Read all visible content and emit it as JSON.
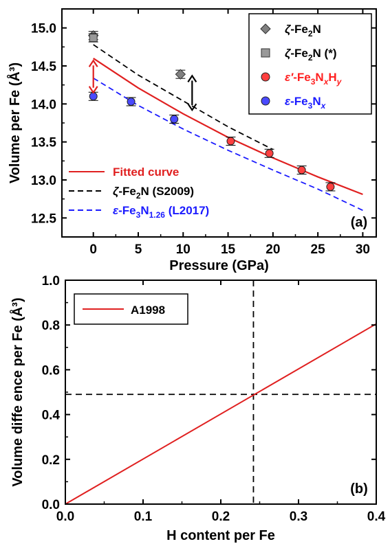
{
  "chart_data": [
    {
      "type": "scatter",
      "panel_label": "(a)",
      "xlabel": "Pressure (GPa)",
      "ylabel": "Volume per Fe (Å³)",
      "xlim": [
        -3.5,
        31.5
      ],
      "ylim": [
        12.25,
        15.25
      ],
      "xticks": [
        0,
        5,
        10,
        15,
        20,
        25,
        30
      ],
      "yticks": [
        12.5,
        13.0,
        13.5,
        14.0,
        14.5,
        15.0
      ],
      "xtick_labels": [
        "0",
        "5",
        "10",
        "15",
        "20",
        "25",
        "30"
      ],
      "ytick_labels": [
        "12.5",
        "13.0",
        "13.5",
        "14.0",
        "14.5",
        "15.0"
      ],
      "series": [
        {
          "name": "ζ-Fe₂N",
          "label_parts": [
            "ζ",
            "-Fe",
            "2",
            "N",
            "",
            "",
            ""
          ],
          "marker": "diamond",
          "color": "#808080",
          "x": [
            0,
            9.7
          ],
          "y": [
            14.9,
            14.39
          ]
        },
        {
          "name": "ζ-Fe₂N (*)",
          "label_parts": [
            "ζ",
            "-Fe",
            "2",
            "N (*)",
            "",
            "",
            ""
          ],
          "marker": "square",
          "color": "#999999",
          "x": [
            0
          ],
          "y": [
            14.87
          ]
        },
        {
          "name": "ε′-Fe₃NₓHᵧ",
          "label_parts": [
            "ε′",
            "-Fe",
            "3",
            "N",
            "x",
            "H",
            "y"
          ],
          "marker": "circle",
          "color": "#ff4040",
          "x": [
            15.3,
            19.6,
            23.2,
            26.4
          ],
          "y": [
            13.51,
            13.35,
            13.13,
            12.91
          ]
        },
        {
          "name": "ε-Fe₃Nₓ",
          "label_parts": [
            "ε",
            "-Fe",
            "3",
            "N",
            "x",
            "",
            ""
          ],
          "marker": "circle",
          "color": "#4a4aff",
          "x": [
            0,
            4.2,
            9.0
          ],
          "y": [
            14.1,
            14.03,
            13.8
          ]
        }
      ],
      "lines": [
        {
          "name": "Fitted curve",
          "label_parts": [
            "",
            "Fitted curve",
            "",
            "",
            ""
          ],
          "style": "solid",
          "color": "#e02020",
          "x": [
            0,
            5,
            10,
            15,
            20,
            25,
            30
          ],
          "y": [
            14.6,
            14.21,
            13.87,
            13.56,
            13.29,
            13.04,
            12.81
          ]
        },
        {
          "name": "ζ-Fe₂N (S2009)",
          "label_parts": [
            "ζ",
            "-Fe",
            "2",
            "N (S2009)",
            ""
          ],
          "style": "dashed",
          "color": "#000000",
          "x": [
            0,
            5,
            10,
            15,
            20
          ],
          "y": [
            14.78,
            14.38,
            14.04,
            13.7,
            13.4
          ]
        },
        {
          "name": "ε-Fe₃N₁.₂₆ (L2017)",
          "label_parts": [
            "ε",
            "-Fe",
            "3",
            "N",
            "1.26",
            " (L2017)"
          ],
          "style": "dashed",
          "color": "#1a1aff",
          "x": [
            0,
            5,
            10,
            15,
            20,
            25,
            30
          ],
          "y": [
            14.34,
            13.98,
            13.67,
            13.39,
            13.13,
            12.88,
            12.6
          ]
        }
      ],
      "annotations": [
        {
          "type": "double-arrow",
          "color": "#e02020",
          "x": 0,
          "y_from": 14.15,
          "y_to": 14.57
        },
        {
          "type": "double-arrow",
          "color": "#000000",
          "x": 11,
          "y_from": 13.92,
          "y_to": 14.37
        }
      ],
      "legend_position": "top-right",
      "lines_legend_position": "bottom-left"
    },
    {
      "type": "line",
      "panel_label": "(b)",
      "xlabel": "H content per Fe",
      "ylabel": "Volume diffe‌ence per Fe (Å³)",
      "ylabel_text": "Volume diffe ence per Fe (Å³)",
      "xlim": [
        0,
        0.4
      ],
      "ylim": [
        0,
        1.0
      ],
      "xticks": [
        0.0,
        0.1,
        0.2,
        0.3,
        0.4
      ],
      "yticks": [
        0.0,
        0.2,
        0.4,
        0.6,
        0.8,
        1.0
      ],
      "xtick_labels": [
        "0.0",
        "0.1",
        "0.2",
        "0.3",
        "0.4"
      ],
      "ytick_labels": [
        "0.0",
        "0.2",
        "0.4",
        "0.6",
        "0.8",
        "1.0"
      ],
      "series": [
        {
          "name": "A1998",
          "color": "#e02020",
          "style": "solid",
          "x": [
            0,
            0.4
          ],
          "y": [
            0,
            0.805
          ]
        }
      ],
      "reference_lines": [
        {
          "orientation": "vertical",
          "value": 0.242,
          "style": "dashed",
          "color": "#000000"
        },
        {
          "orientation": "horizontal",
          "value": 0.49,
          "style": "dashed",
          "color": "#000000"
        }
      ],
      "legend_position": "top-left"
    }
  ]
}
